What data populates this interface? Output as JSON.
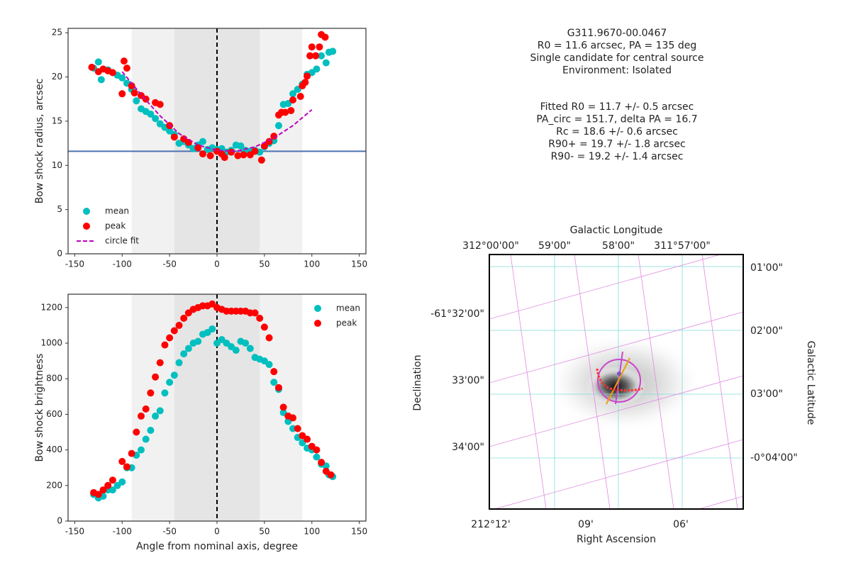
{
  "chart_data": [
    {
      "type": "scatter",
      "y_label": "Bow shock radius, arcsec",
      "xlim": [
        -157,
        157
      ],
      "ylim": [
        0,
        25.5
      ],
      "xticks": [
        -150,
        -100,
        -50,
        0,
        50,
        100,
        150
      ],
      "yticks": [
        0,
        5,
        10,
        15,
        20,
        25
      ],
      "legend": "lower left",
      "shaded_regions": [
        [
          -90,
          90
        ],
        [
          -45,
          45
        ]
      ],
      "hline": 11.6,
      "vline": 0,
      "series": [
        {
          "name": "mean",
          "color": "#00bfbf",
          "style": "marker",
          "x": [
            -130,
            -125,
            -122,
            -115,
            -110,
            -105,
            -100,
            -95,
            -90,
            -85,
            -80,
            -75,
            -70,
            -65,
            -60,
            -55,
            -50,
            -45,
            -40,
            -35,
            -30,
            -25,
            -20,
            -15,
            -10,
            -5,
            0,
            5,
            10,
            15,
            20,
            25,
            30,
            35,
            40,
            45,
            50,
            55,
            60,
            65,
            70,
            75,
            80,
            85,
            90,
            95,
            100,
            105,
            110,
            115,
            118,
            122
          ],
          "values": [
            21.0,
            21.7,
            19.7,
            20.8,
            20.5,
            20.2,
            19.9,
            19.3,
            18.6,
            17.3,
            16.4,
            16.1,
            15.8,
            15.3,
            14.7,
            14.3,
            13.9,
            13.5,
            12.5,
            12.7,
            12.3,
            11.9,
            12.3,
            12.7,
            11.8,
            12.0,
            11.8,
            11.9,
            11.5,
            11.7,
            12.3,
            12.2,
            11.7,
            11.6,
            11.7,
            11.5,
            12.1,
            12.5,
            12.8,
            14.5,
            16.9,
            17.0,
            18.1,
            18.6,
            19.2,
            20.3,
            20.5,
            20.9,
            22.4,
            21.6,
            22.8,
            22.9
          ]
        },
        {
          "name": "peak",
          "color": "#ff0000",
          "style": "marker",
          "x": [
            -132,
            -125,
            -120,
            -115,
            -110,
            -100,
            -98,
            -95,
            -90,
            -87,
            -80,
            -75,
            -65,
            -60,
            -50,
            -45,
            -35,
            -30,
            -20,
            -15,
            -7,
            0,
            5,
            8,
            15,
            22,
            28,
            35,
            40,
            47,
            50,
            55,
            60,
            65,
            68,
            72,
            78,
            80,
            88,
            90,
            93,
            95,
            98,
            100,
            104,
            108,
            110,
            114
          ],
          "values": [
            21.1,
            20.6,
            20.9,
            20.7,
            20.5,
            18.1,
            21.8,
            21.0,
            19.0,
            18.2,
            17.9,
            17.5,
            17.1,
            16.9,
            14.5,
            13.2,
            13.0,
            12.6,
            12.0,
            11.3,
            11.1,
            11.6,
            11.3,
            10.9,
            11.5,
            11.1,
            11.2,
            11.2,
            11.6,
            10.6,
            12.2,
            12.7,
            13.3,
            15.7,
            16.0,
            16.0,
            16.2,
            17.4,
            17.8,
            19.0,
            19.4,
            20.1,
            22.4,
            23.4,
            22.4,
            23.4,
            24.8,
            24.5
          ]
        },
        {
          "name": "circle fit",
          "color": "#bf00bf",
          "style": "dashed",
          "x": [
            -100,
            -80,
            -60,
            -40,
            -20,
            0,
            20,
            40,
            60,
            80,
            100
          ],
          "values": [
            20.6,
            18.0,
            15.6,
            13.6,
            12.3,
            11.7,
            11.6,
            12.1,
            13.1,
            14.5,
            16.3
          ]
        }
      ]
    },
    {
      "type": "scatter",
      "x_label": "Angle from nominal axis, degree",
      "y_label": "Bow shock brightness",
      "xlim": [
        -157,
        157
      ],
      "ylim": [
        0,
        1275
      ],
      "xticks": [
        -150,
        -100,
        -50,
        0,
        50,
        100,
        150
      ],
      "yticks": [
        0,
        200,
        400,
        600,
        800,
        1000,
        1200
      ],
      "legend": "upper right",
      "shaded_regions": [
        [
          -90,
          90
        ],
        [
          -45,
          45
        ]
      ],
      "vline": 0,
      "series": [
        {
          "name": "mean",
          "color": "#00bfbf",
          "style": "marker",
          "x": [
            -130,
            -125,
            -120,
            -115,
            -110,
            -105,
            -100,
            -95,
            -90,
            -85,
            -80,
            -75,
            -70,
            -65,
            -60,
            -55,
            -50,
            -45,
            -40,
            -35,
            -30,
            -25,
            -20,
            -15,
            -10,
            -5,
            0,
            5,
            10,
            15,
            20,
            25,
            30,
            35,
            40,
            45,
            50,
            55,
            60,
            65,
            70,
            75,
            80,
            85,
            90,
            95,
            100,
            105,
            110,
            115,
            118,
            122
          ],
          "values": [
            150,
            130,
            140,
            175,
            175,
            200,
            220,
            300,
            300,
            370,
            400,
            460,
            510,
            590,
            620,
            720,
            780,
            820,
            890,
            940,
            970,
            1000,
            1010,
            1050,
            1060,
            1080,
            1000,
            1020,
            1000,
            980,
            960,
            1010,
            1000,
            970,
            920,
            910,
            900,
            880,
            780,
            740,
            610,
            560,
            520,
            470,
            440,
            410,
            400,
            360,
            320,
            310,
            260,
            250
          ]
        },
        {
          "name": "peak",
          "color": "#ff0000",
          "style": "marker",
          "x": [
            -130,
            -125,
            -120,
            -115,
            -110,
            -100,
            -95,
            -90,
            -85,
            -80,
            -75,
            -70,
            -65,
            -60,
            -55,
            -50,
            -45,
            -40,
            -35,
            -30,
            -25,
            -20,
            -15,
            -10,
            -5,
            0,
            5,
            10,
            15,
            20,
            25,
            30,
            35,
            40,
            45,
            50,
            55,
            60,
            65,
            70,
            75,
            80,
            85,
            90,
            95,
            100,
            105,
            110,
            115,
            120
          ],
          "values": [
            160,
            150,
            175,
            200,
            230,
            335,
            305,
            380,
            500,
            590,
            630,
            720,
            810,
            890,
            990,
            1030,
            1070,
            1100,
            1140,
            1170,
            1190,
            1200,
            1210,
            1210,
            1220,
            1200,
            1190,
            1180,
            1180,
            1180,
            1180,
            1180,
            1170,
            1170,
            1140,
            1090,
            1030,
            840,
            750,
            640,
            590,
            580,
            520,
            480,
            460,
            420,
            400,
            330,
            280,
            260
          ]
        }
      ]
    }
  ],
  "info": [
    "G311.9670-00.0467",
    "R0 = 11.6 arcsec, PA = 135 deg",
    "Single candidate for central source",
    "Environment: Isolated"
  ],
  "fit": [
    "Fitted R0 = 11.7 +/- 0.5 arcsec",
    "PA_circ = 151.7, delta PA = 16.7",
    "Rc = 18.6 +/- 0.6 arcsec",
    "R90+ = 19.7 +/- 1.8 arcsec",
    "R90- = 19.2 +/- 1.4 arcsec"
  ],
  "image_panel": {
    "x_label": "Right Ascension",
    "y_label": "Declination",
    "top_label": "Galactic Longitude",
    "right_label": "Galactic Latitude",
    "ra_ticks": [
      "212°12'",
      "09'",
      "06'"
    ],
    "dec_ticks": [
      "-61°32'00\"",
      "33'00\"",
      "34'00\""
    ],
    "glon_ticks": [
      "312°00'00\"",
      "59'00\"",
      "58'00\"",
      "311°57'00\""
    ],
    "glat_ticks": [
      "01'00\"",
      "02'00\"",
      "03'00\"",
      "-0°04'00\""
    ]
  }
}
